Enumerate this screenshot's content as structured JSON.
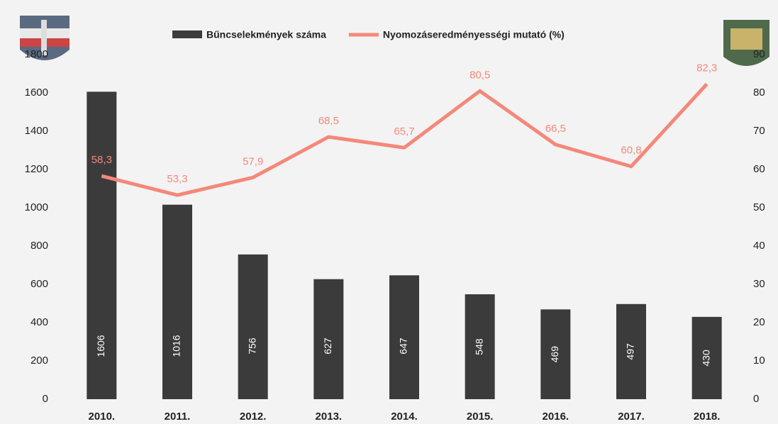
{
  "chart_data": {
    "type": "bar",
    "categories": [
      "2010.",
      "2011.",
      "2012.",
      "2013.",
      "2014.",
      "2015.",
      "2016.",
      "2017.",
      "2018."
    ],
    "series": [
      {
        "name": "Bűncselekmények száma",
        "type": "bar",
        "color": "#3b3b3b",
        "axis": "y",
        "values": [
          1606,
          1016,
          756,
          627,
          647,
          548,
          469,
          497,
          430
        ]
      },
      {
        "name": "Nyomozáseredményességi mutató (%)",
        "type": "line",
        "color": "#f4887a",
        "axis": "y2",
        "values": [
          58.3,
          53.3,
          57.9,
          68.5,
          65.7,
          80.5,
          66.5,
          60.8,
          82.3
        ],
        "value_labels": [
          "58,3",
          "53,3",
          "57,9",
          "68,5",
          "65,7",
          "80,5",
          "66,5",
          "60,8",
          "82,3"
        ]
      }
    ],
    "ylim": [
      0,
      1800
    ],
    "yticks": [
      0,
      200,
      400,
      600,
      800,
      1000,
      1200,
      1400,
      1600,
      1800
    ],
    "y2lim": [
      0,
      90
    ],
    "y2ticks": [
      0,
      10,
      20,
      30,
      40,
      50,
      60,
      70,
      80,
      90
    ],
    "legend": "top"
  }
}
